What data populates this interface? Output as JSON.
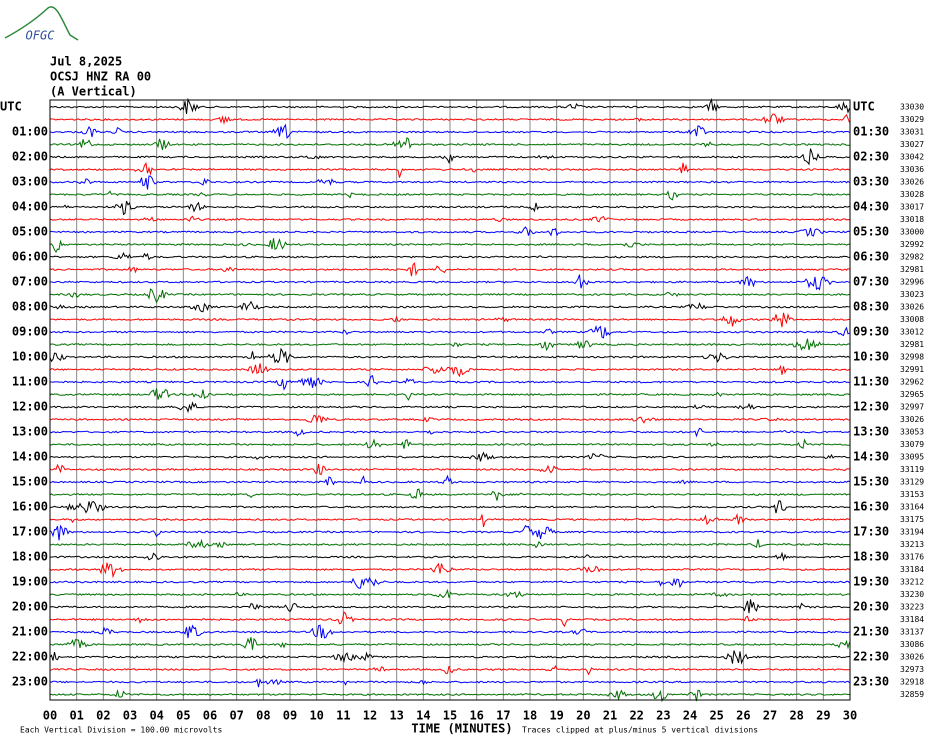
{
  "logo": "OFGC",
  "header": {
    "date": "Jul 8,2025",
    "station": "OCSJ HNZ RA 00",
    "component": "(A Vertical)"
  },
  "left_labels": [
    "UTC",
    "01:00",
    "02:00",
    "03:00",
    "04:00",
    "05:00",
    "06:00",
    "07:00",
    "08:00",
    "09:00",
    "10:00",
    "11:00",
    "12:00",
    "13:00",
    "14:00",
    "15:00",
    "16:00",
    "17:00",
    "18:00",
    "19:00",
    "20:00",
    "21:00",
    "22:00",
    "23:00"
  ],
  "right_labels": [
    "UTC",
    "01:30",
    "02:30",
    "03:30",
    "04:30",
    "05:30",
    "06:30",
    "07:30",
    "08:30",
    "09:30",
    "10:30",
    "11:30",
    "12:30",
    "13:30",
    "14:30",
    "15:30",
    "16:30",
    "17:30",
    "18:30",
    "19:30",
    "20:30",
    "21:30",
    "22:30",
    "23:30"
  ],
  "trace_offsets": [
    33030,
    33029,
    33031,
    33027,
    33042,
    33036,
    33026,
    33028,
    33017,
    33018,
    33000,
    32992,
    32982,
    32981,
    32996,
    33023,
    33026,
    33008,
    33012,
    32981,
    32998,
    32991,
    32962,
    32965,
    32997,
    33026,
    33053,
    33079,
    33095,
    33119,
    33129,
    33153,
    33164,
    33175,
    33194,
    33213,
    33176,
    33184,
    33212,
    33230,
    33223,
    33184,
    33137,
    33086,
    33026,
    32973,
    32918,
    32859
  ],
  "trace_colors": [
    "#000000",
    "#ff0000",
    "#0000ff",
    "#007000"
  ],
  "x_ticks": [
    "00",
    "01",
    "02",
    "03",
    "04",
    "05",
    "06",
    "07",
    "08",
    "09",
    "10",
    "11",
    "12",
    "13",
    "14",
    "15",
    "16",
    "17",
    "18",
    "19",
    "20",
    "21",
    "22",
    "23",
    "24",
    "25",
    "26",
    "27",
    "28",
    "29",
    "30"
  ],
  "footer": {
    "scale": "Each Vertical Division =  100.00 microvolts",
    "x_label": "TIME (MINUTES)",
    "clip": "Traces clipped at plus/minus 5 vertical divisions"
  }
}
